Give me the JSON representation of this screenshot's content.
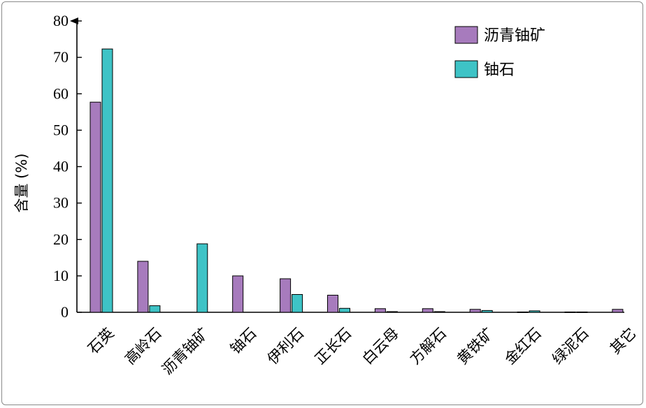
{
  "chart_data": {
    "type": "bar",
    "ylabel": "含量 (%)",
    "ylim": [
      0,
      80
    ],
    "yticks": [
      "0",
      "10",
      "20",
      "30",
      "40",
      "50",
      "60",
      "70",
      "80"
    ],
    "categories": [
      "石英",
      "高岭石",
      "沥青铀矿",
      "铀石",
      "伊利石",
      "正长石",
      "白云母",
      "方解石",
      "黄铁矿",
      "金红石",
      "绿泥石",
      "其它"
    ],
    "series": [
      {
        "name": "沥青铀矿",
        "color": "#a77bbd",
        "values": [
          57.7,
          14.0,
          0,
          10.0,
          9.2,
          4.7,
          1.0,
          1.0,
          0.8,
          0.1,
          0.1,
          0.8
        ]
      },
      {
        "name": "铀石",
        "color": "#3ec3c6",
        "values": [
          72.3,
          1.8,
          18.8,
          0,
          4.9,
          1.1,
          0.2,
          0.2,
          0.5,
          0.4,
          0.1,
          0
        ]
      }
    ],
    "legend_position": "top-right",
    "grid": false
  }
}
